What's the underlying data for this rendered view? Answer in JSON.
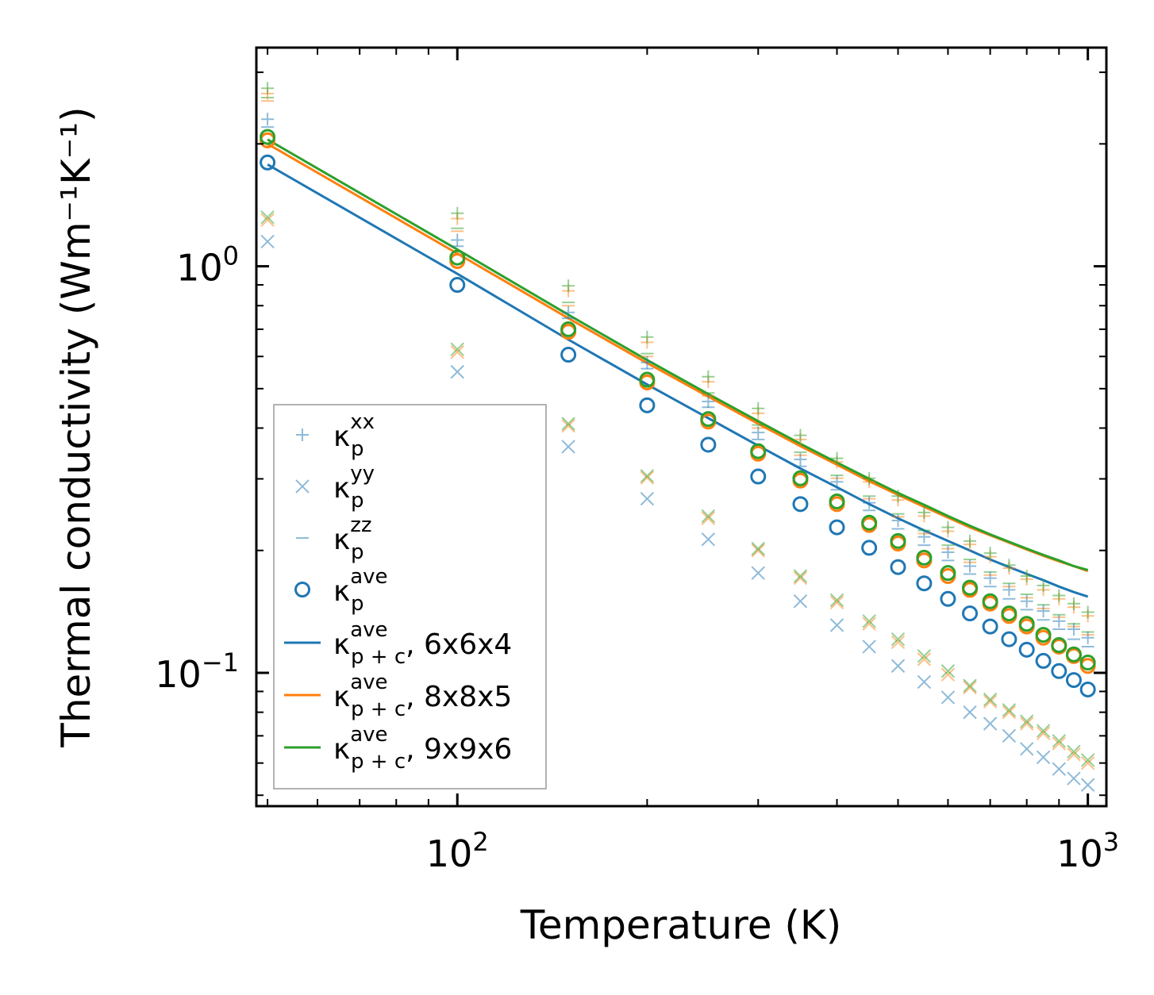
{
  "chart_data": {
    "type": "scatter",
    "xscale": "log",
    "yscale": "log",
    "xlim": [
      48,
      1070
    ],
    "ylim": [
      0.047,
      3.45
    ],
    "x": [
      50,
      100,
      150,
      200,
      250,
      300,
      350,
      400,
      450,
      500,
      550,
      600,
      650,
      700,
      750,
      800,
      850,
      900,
      950,
      1000
    ],
    "xlabel": "Temperature (K)",
    "ylabel": "Thermal conductivity (Wm⁻¹K⁻¹)",
    "xticks": [
      {
        "value": 100,
        "base": "10",
        "exp": "2"
      },
      {
        "value": 1000,
        "base": "10",
        "exp": "3"
      }
    ],
    "yticks": [
      {
        "value": 0.1,
        "base": "10",
        "exp": "−1"
      },
      {
        "value": 1.0,
        "base": "10",
        "exp": "0"
      }
    ],
    "series": [
      {
        "name": "kp_xx_6x6x4",
        "marker": "plus",
        "color": "#1f77b4",
        "values": [
          2.3,
          1.16,
          0.77,
          0.58,
          0.465,
          0.39,
          0.335,
          0.295,
          0.262,
          0.237,
          0.216,
          0.198,
          0.183,
          0.171,
          0.16,
          0.15,
          0.142,
          0.134,
          0.128,
          0.122
        ]
      },
      {
        "name": "kp_xx_8x8x5",
        "marker": "plus",
        "color": "#ff7f0e",
        "values": [
          2.66,
          1.31,
          0.87,
          0.65,
          0.52,
          0.435,
          0.375,
          0.33,
          0.295,
          0.266,
          0.243,
          0.223,
          0.207,
          0.193,
          0.181,
          0.17,
          0.16,
          0.152,
          0.145,
          0.138
        ]
      },
      {
        "name": "kp_xx_9x9x6",
        "marker": "plus",
        "color": "#2ca02c",
        "values": [
          2.74,
          1.35,
          0.895,
          0.67,
          0.535,
          0.447,
          0.384,
          0.337,
          0.301,
          0.272,
          0.248,
          0.228,
          0.211,
          0.197,
          0.184,
          0.173,
          0.164,
          0.155,
          0.148,
          0.141
        ]
      },
      {
        "name": "kp_yy_6x6x4",
        "marker": "x",
        "color": "#1f77b4",
        "values": [
          1.15,
          0.55,
          0.36,
          0.268,
          0.213,
          0.176,
          0.15,
          0.131,
          0.116,
          0.104,
          0.095,
          0.087,
          0.08,
          0.075,
          0.07,
          0.065,
          0.062,
          0.058,
          0.055,
          0.053
        ]
      },
      {
        "name": "kp_yy_8x8x5",
        "marker": "x",
        "color": "#ff7f0e",
        "values": [
          1.3,
          0.615,
          0.405,
          0.302,
          0.24,
          0.2,
          0.171,
          0.149,
          0.132,
          0.119,
          0.108,
          0.099,
          0.092,
          0.085,
          0.08,
          0.075,
          0.071,
          0.067,
          0.063,
          0.06
        ]
      },
      {
        "name": "kp_yy_9x9x6",
        "marker": "x",
        "color": "#2ca02c",
        "values": [
          1.32,
          0.625,
          0.41,
          0.305,
          0.243,
          0.202,
          0.173,
          0.151,
          0.134,
          0.121,
          0.11,
          0.101,
          0.093,
          0.086,
          0.081,
          0.076,
          0.072,
          0.068,
          0.064,
          0.061
        ]
      },
      {
        "name": "kp_zz_6x6x4",
        "marker": "hline",
        "color": "#1f77b4",
        "values": [
          2.2,
          1.12,
          0.745,
          0.56,
          0.45,
          0.375,
          0.322,
          0.282,
          0.251,
          0.226,
          0.206,
          0.189,
          0.175,
          0.163,
          0.152,
          0.143,
          0.135,
          0.128,
          0.121,
          0.116
        ]
      },
      {
        "name": "kp_zz_8x8x5",
        "marker": "hline",
        "color": "#ff7f0e",
        "values": [
          2.55,
          1.22,
          0.8,
          0.6,
          0.48,
          0.4,
          0.343,
          0.301,
          0.268,
          0.242,
          0.22,
          0.202,
          0.187,
          0.174,
          0.163,
          0.153,
          0.144,
          0.137,
          0.13,
          0.124
        ]
      },
      {
        "name": "kp_zz_9x9x6",
        "marker": "hline",
        "color": "#2ca02c",
        "values": [
          2.6,
          1.24,
          0.815,
          0.61,
          0.488,
          0.407,
          0.349,
          0.306,
          0.272,
          0.246,
          0.224,
          0.206,
          0.19,
          0.177,
          0.166,
          0.156,
          0.147,
          0.139,
          0.132,
          0.126
        ]
      },
      {
        "name": "kp_ave_6x6x4",
        "marker": "circle",
        "color": "#1f77b4",
        "values": [
          1.8,
          0.9,
          0.606,
          0.455,
          0.364,
          0.304,
          0.26,
          0.228,
          0.203,
          0.182,
          0.166,
          0.152,
          0.14,
          0.13,
          0.121,
          0.114,
          0.107,
          0.101,
          0.096,
          0.091
        ]
      },
      {
        "name": "kp_ave_8x8x5",
        "marker": "circle",
        "color": "#ff7f0e",
        "values": [
          2.04,
          1.03,
          0.69,
          0.518,
          0.415,
          0.346,
          0.297,
          0.26,
          0.231,
          0.208,
          0.189,
          0.173,
          0.16,
          0.148,
          0.138,
          0.13,
          0.122,
          0.116,
          0.11,
          0.104
        ]
      },
      {
        "name": "kp_ave_9x9x6",
        "marker": "circle",
        "color": "#2ca02c",
        "values": [
          2.08,
          1.05,
          0.7,
          0.526,
          0.421,
          0.351,
          0.301,
          0.264,
          0.234,
          0.211,
          0.192,
          0.176,
          0.162,
          0.15,
          0.14,
          0.132,
          0.124,
          0.117,
          0.111,
          0.106
        ]
      },
      {
        "name": "kpc_ave_6x6x4",
        "marker": "line",
        "color": "#1f77b4",
        "values": [
          1.78,
          0.958,
          0.66,
          0.512,
          0.423,
          0.362,
          0.318,
          0.286,
          0.26,
          0.24,
          0.224,
          0.211,
          0.2,
          0.19,
          0.182,
          0.175,
          0.169,
          0.163,
          0.158,
          0.154
        ]
      },
      {
        "name": "kpc_ave_8x8x5",
        "marker": "line",
        "color": "#ff7f0e",
        "values": [
          2.0,
          1.075,
          0.745,
          0.578,
          0.478,
          0.41,
          0.361,
          0.325,
          0.296,
          0.274,
          0.256,
          0.241,
          0.228,
          0.218,
          0.209,
          0.201,
          0.194,
          0.188,
          0.183,
          0.178
        ]
      },
      {
        "name": "kpc_ave_9x9x6",
        "marker": "line",
        "color": "#2ca02c",
        "values": [
          2.05,
          1.1,
          0.76,
          0.588,
          0.485,
          0.416,
          0.366,
          0.329,
          0.3,
          0.277,
          0.259,
          0.243,
          0.23,
          0.219,
          0.21,
          0.202,
          0.195,
          0.189,
          0.183,
          0.179
        ]
      }
    ],
    "legend": {
      "position": "lower-left",
      "entries": [
        {
          "marker": "plus",
          "symbol": "κ",
          "sub": "p",
          "sup": "xx",
          "suffix": ""
        },
        {
          "marker": "x",
          "symbol": "κ",
          "sub": "p",
          "sup": "yy",
          "suffix": ""
        },
        {
          "marker": "hline",
          "symbol": "κ",
          "sub": "p",
          "sup": "zz",
          "suffix": ""
        },
        {
          "marker": "circle",
          "symbol": "κ",
          "sub": "p",
          "sup": "ave",
          "suffix": ""
        },
        {
          "marker": "line",
          "symbol": "κ",
          "sub": "p + c",
          "sup": "ave",
          "suffix": ", 6x6x4",
          "color": "#1f77b4"
        },
        {
          "marker": "line",
          "symbol": "κ",
          "sub": "p + c",
          "sup": "ave",
          "suffix": ", 8x8x5",
          "color": "#ff7f0e"
        },
        {
          "marker": "line",
          "symbol": "κ",
          "sub": "p + c",
          "sup": "ave",
          "suffix": ", 9x9x6",
          "color": "#2ca02c"
        }
      ]
    }
  }
}
